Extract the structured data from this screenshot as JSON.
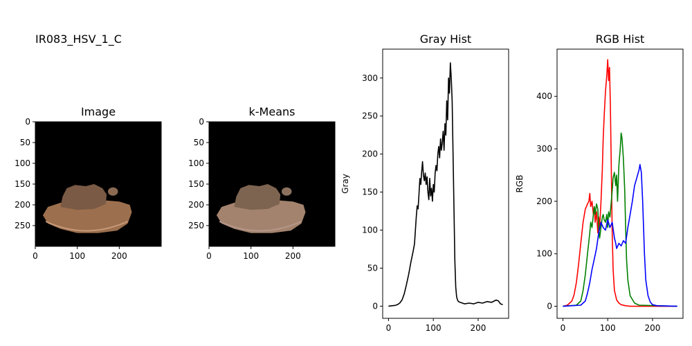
{
  "figure": {
    "suptitle": "IR083_HSV_1_C"
  },
  "chart_data": [
    {
      "type": "image",
      "title": "Image",
      "xlim": [
        0,
        300
      ],
      "ylim": [
        300,
        0
      ],
      "xticks": [
        0,
        100,
        200
      ],
      "yticks": [
        0,
        50,
        100,
        150,
        200,
        250
      ],
      "background": "#000000",
      "object_color": "#8f6b52"
    },
    {
      "type": "image",
      "title": "k-Means",
      "xlim": [
        0,
        300
      ],
      "ylim": [
        300,
        0
      ],
      "xticks": [
        0,
        100,
        200
      ],
      "yticks": [
        0,
        50,
        100,
        150,
        200,
        250
      ],
      "background": "#000000",
      "object_color": "#9a7a66"
    },
    {
      "type": "line",
      "title": "Gray Hist",
      "ylabel": "Gray",
      "xlim": [
        -13,
        268
      ],
      "ylim": [
        -16,
        338
      ],
      "xticks": [
        0,
        100,
        200
      ],
      "yticks": [
        0,
        50,
        100,
        150,
        200,
        250,
        300
      ],
      "grid": false,
      "series": [
        {
          "color": "#000000",
          "x": [
            0,
            15,
            20,
            25,
            30,
            35,
            40,
            45,
            50,
            55,
            58,
            60,
            62,
            64,
            66,
            68,
            70,
            72,
            74,
            76,
            78,
            80,
            82,
            84,
            86,
            88,
            90,
            92,
            94,
            96,
            98,
            100,
            102,
            104,
            106,
            108,
            110,
            112,
            114,
            116,
            118,
            120,
            122,
            124,
            126,
            128,
            130,
            132,
            134,
            136,
            138,
            140,
            142,
            144,
            146,
            148,
            150,
            152,
            154,
            156,
            160,
            170,
            180,
            190,
            200,
            210,
            220,
            230,
            240,
            245,
            250,
            255
          ],
          "y": [
            0,
            1,
            2,
            4,
            8,
            16,
            28,
            42,
            58,
            72,
            82,
            100,
            118,
            132,
            128,
            148,
            168,
            160,
            176,
            190,
            172,
            165,
            175,
            160,
            170,
            150,
            140,
            168,
            145,
            155,
            138,
            160,
            150,
            175,
            185,
            178,
            200,
            210,
            195,
            220,
            205,
            215,
            230,
            205,
            240,
            225,
            270,
            245,
            300,
            280,
            320,
            300,
            270,
            200,
            130,
            60,
            25,
            12,
            8,
            6,
            5,
            3,
            4,
            3,
            5,
            4,
            6,
            5,
            8,
            7,
            3,
            2
          ]
        }
      ]
    },
    {
      "type": "line",
      "title": "RGB Hist",
      "ylabel": "RGB",
      "xlim": [
        -13,
        268
      ],
      "ylim": [
        -23,
        490
      ],
      "xticks": [
        0,
        100,
        200
      ],
      "yticks": [
        0,
        100,
        200,
        300,
        400
      ],
      "grid": false,
      "series": [
        {
          "color": "#ff0000",
          "x": [
            0,
            10,
            20,
            25,
            30,
            35,
            40,
            45,
            50,
            55,
            58,
            60,
            62,
            65,
            68,
            70,
            72,
            75,
            78,
            80,
            82,
            85,
            88,
            90,
            92,
            95,
            98,
            100,
            102,
            104,
            106,
            108,
            110,
            112,
            115,
            120,
            125,
            130,
            140,
            150,
            160,
            180,
            255
          ],
          "y": [
            0,
            2,
            10,
            22,
            45,
            80,
            120,
            160,
            185,
            195,
            200,
            215,
            190,
            200,
            175,
            190,
            160,
            180,
            140,
            170,
            150,
            200,
            260,
            320,
            360,
            410,
            440,
            470,
            430,
            455,
            380,
            260,
            140,
            70,
            30,
            12,
            6,
            3,
            1,
            0,
            0,
            0,
            0
          ]
        },
        {
          "color": "#008000",
          "x": [
            0,
            30,
            40,
            45,
            50,
            55,
            60,
            62,
            65,
            68,
            70,
            72,
            75,
            78,
            80,
            82,
            85,
            88,
            90,
            92,
            95,
            98,
            100,
            102,
            105,
            108,
            110,
            112,
            115,
            118,
            120,
            122,
            125,
            128,
            130,
            132,
            135,
            138,
            140,
            142,
            145,
            150,
            160,
            170,
            255
          ],
          "y": [
            0,
            2,
            10,
            30,
            60,
            100,
            140,
            160,
            150,
            175,
            190,
            175,
            195,
            185,
            150,
            130,
            150,
            170,
            175,
            165,
            160,
            175,
            150,
            180,
            170,
            200,
            220,
            245,
            255,
            230,
            250,
            200,
            270,
            300,
            330,
            320,
            280,
            220,
            150,
            90,
            50,
            20,
            6,
            2,
            0
          ]
        },
        {
          "color": "#0000ff",
          "x": [
            0,
            40,
            50,
            55,
            60,
            65,
            70,
            75,
            80,
            85,
            90,
            95,
            100,
            105,
            110,
            115,
            118,
            120,
            125,
            130,
            135,
            140,
            145,
            150,
            155,
            160,
            165,
            170,
            172,
            175,
            178,
            180,
            182,
            185,
            190,
            195,
            200,
            210,
            255
          ],
          "y": [
            0,
            2,
            10,
            25,
            45,
            70,
            90,
            110,
            140,
            160,
            150,
            145,
            165,
            150,
            160,
            130,
            120,
            110,
            120,
            115,
            125,
            120,
            150,
            175,
            200,
            230,
            245,
            260,
            270,
            255,
            200,
            150,
            100,
            50,
            20,
            8,
            3,
            1,
            0
          ]
        }
      ]
    }
  ]
}
